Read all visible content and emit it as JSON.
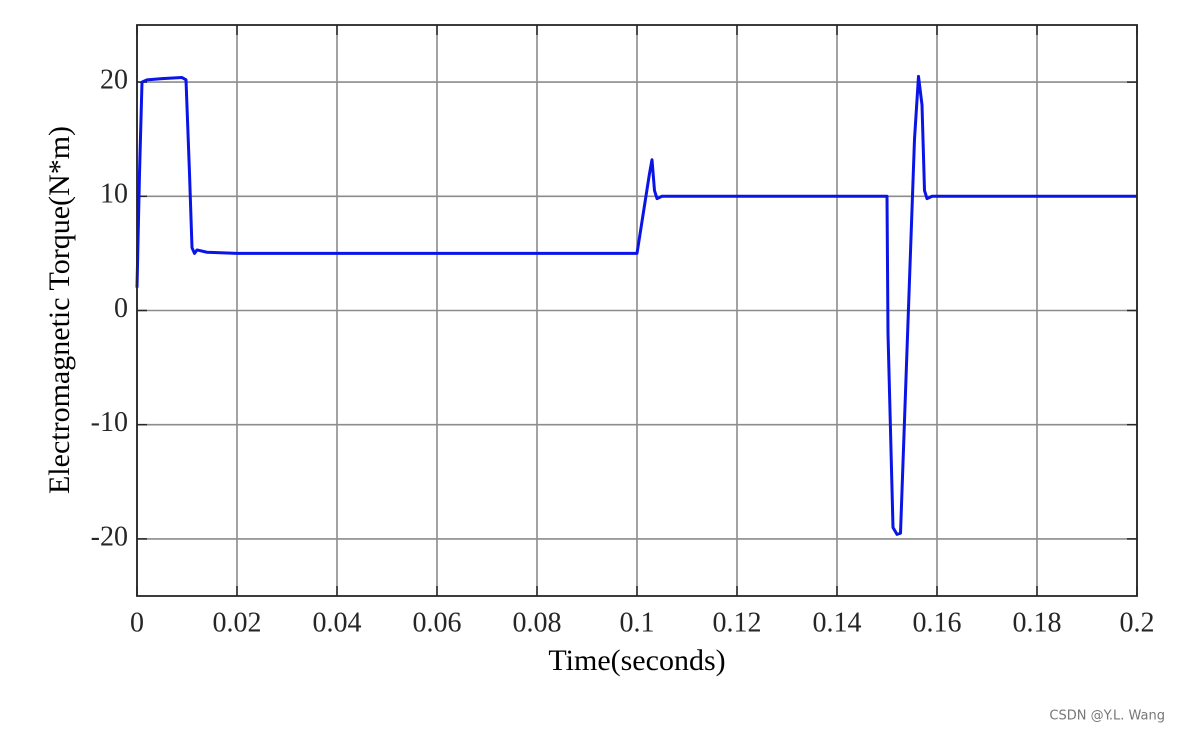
{
  "chart_data": {
    "type": "line",
    "xlabel": "Time(seconds)",
    "ylabel": "Electromagnetic Torque(N*m)",
    "watermark": "CSDN @Y.L. Wang",
    "x": [
      0,
      0.0005,
      0.001,
      0.002,
      0.005,
      0.009,
      0.0098,
      0.0105,
      0.011,
      0.0115,
      0.012,
      0.014,
      0.02,
      0.05,
      0.1,
      0.1025,
      0.103,
      0.1035,
      0.104,
      0.105,
      0.15,
      0.1502,
      0.1512,
      0.152,
      0.1527,
      0.1555,
      0.1563,
      0.157,
      0.1575,
      0.158,
      0.159,
      0.2
    ],
    "series": [
      {
        "color": "#0a14e6",
        "values": [
          2,
          12,
          20,
          20.2,
          20.3,
          20.4,
          20.2,
          12,
          5.5,
          5,
          5.3,
          5.1,
          5,
          5,
          5,
          12,
          13.2,
          10.5,
          9.8,
          10,
          10,
          -2,
          -19,
          -19.6,
          -19.5,
          15,
          20.5,
          18,
          10.5,
          9.8,
          10,
          10
        ]
      }
    ],
    "xlim": [
      0,
      0.2
    ],
    "ylim": [
      -25,
      25
    ],
    "xticks": [
      0,
      0.02,
      0.04,
      0.06,
      0.08,
      0.1,
      0.12,
      0.14,
      0.16,
      0.18,
      0.2
    ],
    "yticks": [
      -20,
      -10,
      0,
      10,
      20
    ],
    "grid": true
  }
}
